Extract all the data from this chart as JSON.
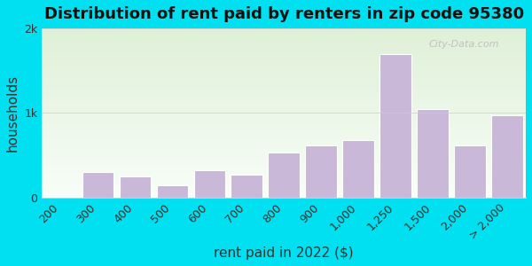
{
  "title": "Distribution of rent paid by renters in zip code 95380",
  "xlabel": "rent paid in 2022 ($)",
  "ylabel": "households",
  "categories": [
    "200",
    "300",
    "400",
    "500",
    "600",
    "700",
    "800",
    "900",
    "1,000",
    "1,250",
    "1,500",
    "2,000",
    "> 2,000"
  ],
  "values": [
    5,
    300,
    250,
    150,
    320,
    270,
    530,
    620,
    680,
    1700,
    1050,
    620,
    970
  ],
  "bar_color": "#c9b8d8",
  "bar_edge_color": "#ffffff",
  "ylim": [
    0,
    2000
  ],
  "ytick_labels": [
    "0",
    "1k",
    "2k"
  ],
  "background_outer": "#00e0f0",
  "bg_grad_top": "#dff0d8",
  "bg_grad_bottom": "#f8fef8",
  "title_fontsize": 13,
  "axis_label_fontsize": 11,
  "tick_fontsize": 9,
  "watermark_text": "City-Data.com"
}
